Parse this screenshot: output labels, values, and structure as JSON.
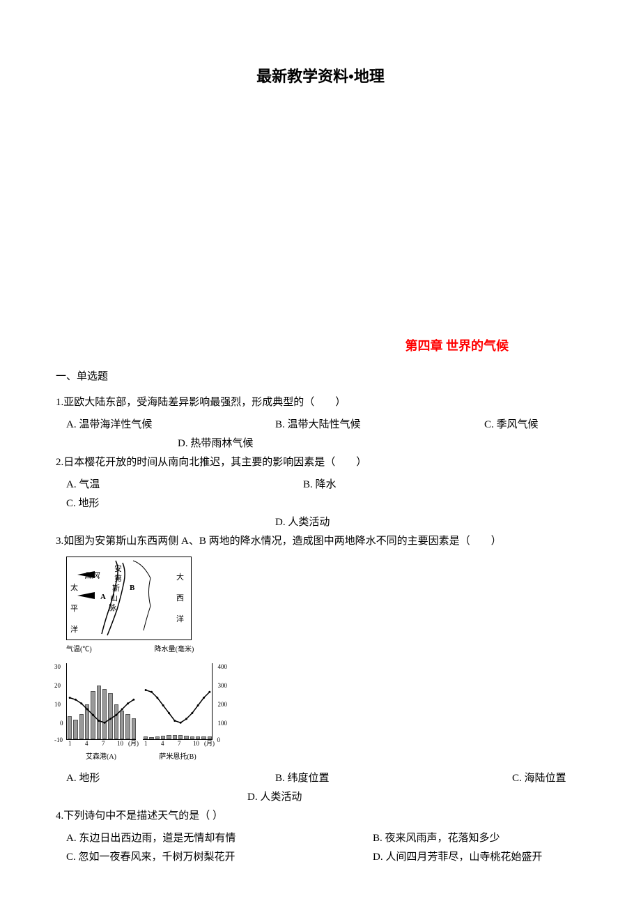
{
  "main_title": "最新教学资料•地理",
  "chapter_title": "第四章 世界的气候",
  "section1": "一、单选题",
  "q1": {
    "text": "1.亚欧大陆东部，受海陆差异影响最强烈，形成典型的（　　）",
    "a": "A. 温带海洋性气候",
    "b": "B. 温带大陆性气候",
    "c": "C. 季风气候",
    "d": "D. 热带雨林气候"
  },
  "q2": {
    "text": "2.日本樱花开放的时间从南向北推迟，其主要的影响因素是（　　）",
    "a": "A. 气温",
    "b": "B. 降水",
    "c": "C. 地形",
    "d": "D. 人类活动"
  },
  "q3": {
    "text": "3.如图为安第斯山东西两侧 A、B 两地的降水情况，造成图中两地降水不同的主要因素是（　　）",
    "a": "A. 地形",
    "b": "B. 纬度位置",
    "c": "C. 海陆位置",
    "d": "D. 人类活动"
  },
  "q4": {
    "text": "4.下列诗句中不是描述天气的是（  ）",
    "a": "A. 东边日出西边雨，道是无情却有情",
    "b": "B. 夜来风雨声，花落知多少",
    "c": "C. 忽如一夜春风来，千树万树梨花开",
    "d": "D. 人间四月芳菲尽，山寺桃花始盛开"
  },
  "map": {
    "label_pacific": "太",
    "label_pacific2": "平",
    "label_pacific3": "洋",
    "label_atlantic": "大",
    "label_atlantic2": "西",
    "label_atlantic3": "洋",
    "label_andes1": "安",
    "label_andes2": "第",
    "label_andes3": "斯",
    "label_andes4": "山",
    "label_andes5": "脉",
    "label_wind": "西风",
    "label_a": "A",
    "label_b": "B"
  },
  "chart_a": {
    "title_left": "气温(℃)",
    "title_right": "降水量(毫米)",
    "y_ticks_temp": [
      "30",
      "20",
      "10",
      "0",
      "-10"
    ],
    "y_ticks_precip": [
      "400",
      "300",
      "200",
      "100",
      "0"
    ],
    "x_ticks": [
      "1",
      "4",
      "7",
      "10",
      "(月)"
    ],
    "name": "艾森港(A)",
    "temp_values": [
      12,
      11,
      9,
      6,
      3,
      0,
      -1,
      1,
      3,
      6,
      9,
      11
    ],
    "precip_values": [
      120,
      100,
      130,
      180,
      250,
      280,
      260,
      240,
      180,
      150,
      130,
      110
    ],
    "temp_color": "#000000",
    "bar_color": "#999999",
    "ylim_temp": [
      -10,
      30
    ],
    "ylim_precip": [
      0,
      400
    ]
  },
  "chart_b": {
    "name": "萨米恩托(B)",
    "temp_values": [
      16,
      15,
      12,
      8,
      4,
      0,
      -1,
      1,
      4,
      8,
      12,
      15
    ],
    "precip_values": [
      15,
      12,
      15,
      18,
      20,
      22,
      20,
      18,
      15,
      14,
      13,
      14
    ],
    "temp_color": "#000000",
    "bar_color": "#999999",
    "ylim_temp": [
      -10,
      30
    ],
    "ylim_precip": [
      0,
      400
    ]
  },
  "colors": {
    "chapter_color": "#ff0000",
    "text_color": "#000000",
    "background": "#ffffff"
  }
}
